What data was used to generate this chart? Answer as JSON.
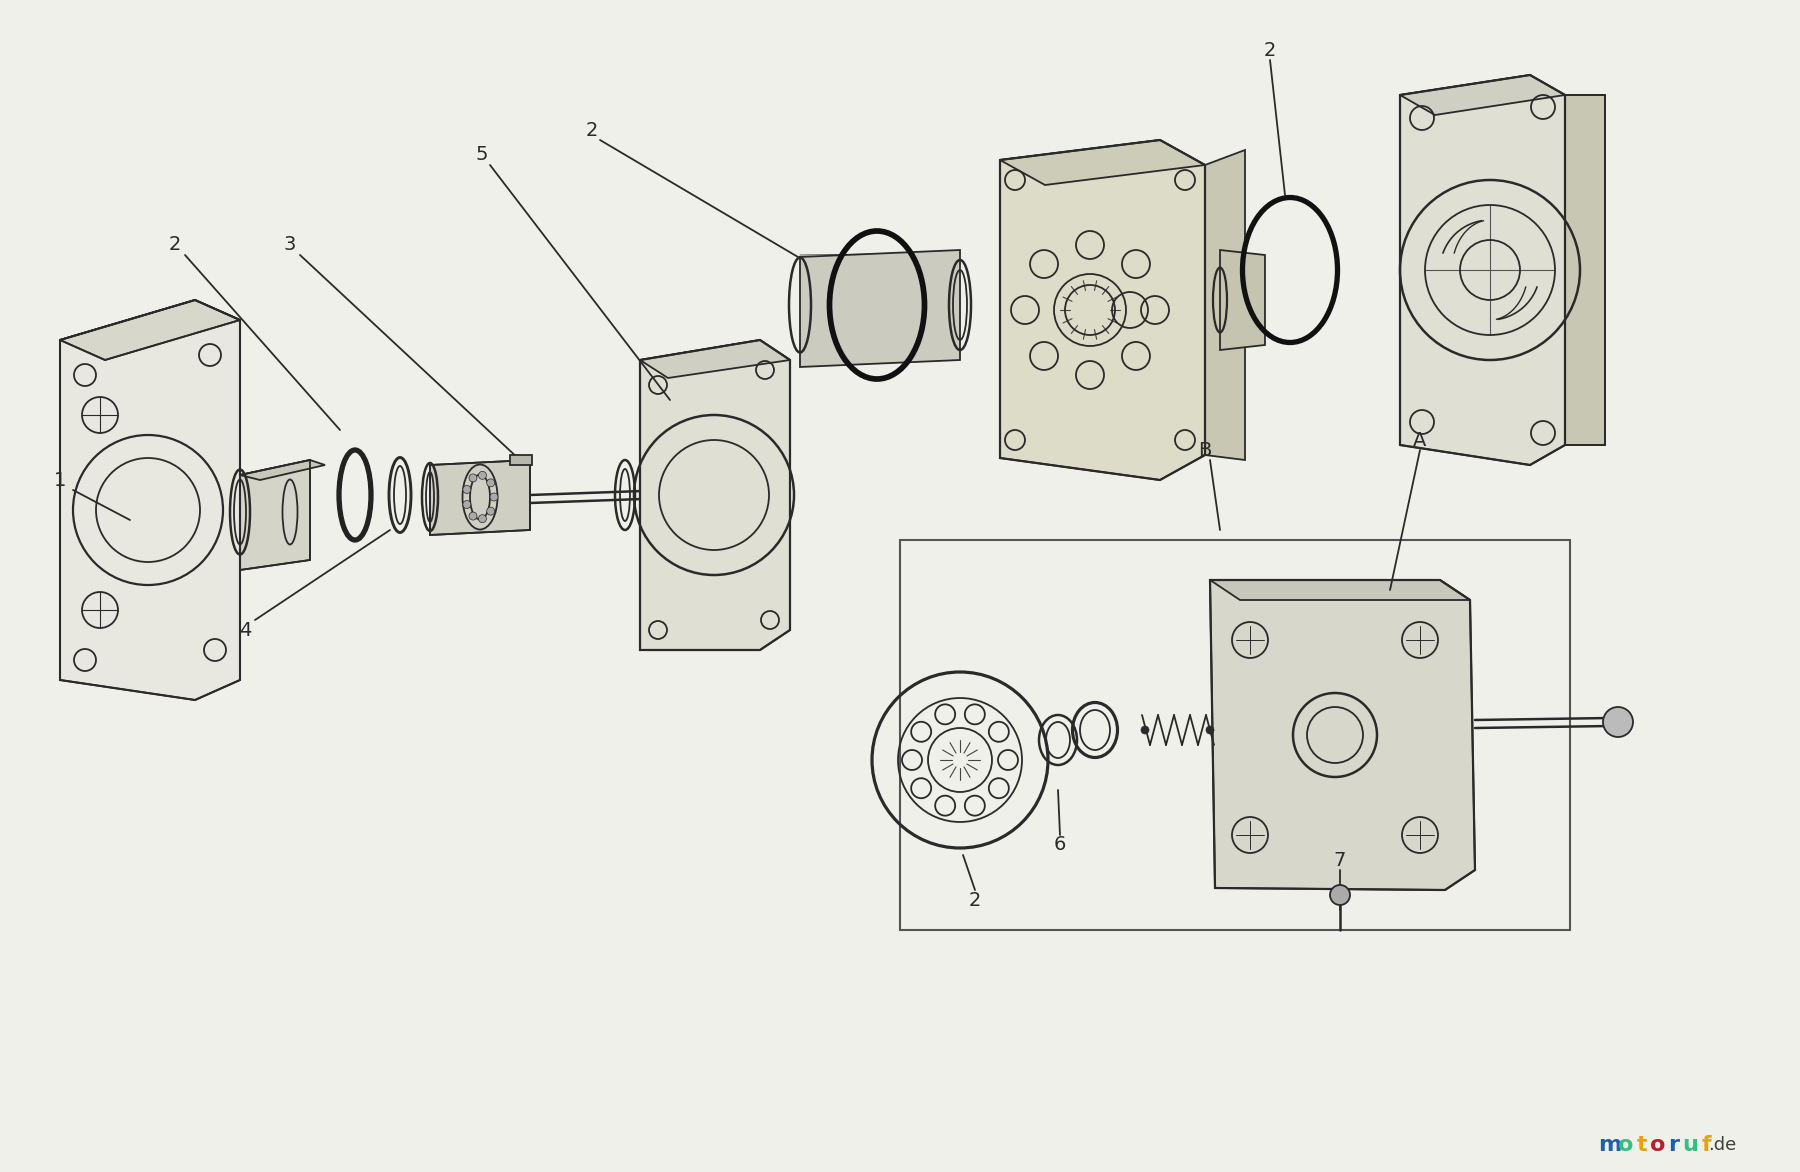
{
  "bg": "#f0f0eb",
  "lc": "#2a2a2a",
  "lw": 1.3,
  "logo_letters": [
    "m",
    "o",
    "t",
    "o",
    "r",
    "u",
    "f"
  ],
  "logo_colors": [
    "#1a5fb4",
    "#2ec27e",
    "#e5a50a",
    "#c01c28",
    "#1a5fb4",
    "#2ec27e",
    "#e5a50a"
  ],
  "logo_suffix_color": "#404040"
}
